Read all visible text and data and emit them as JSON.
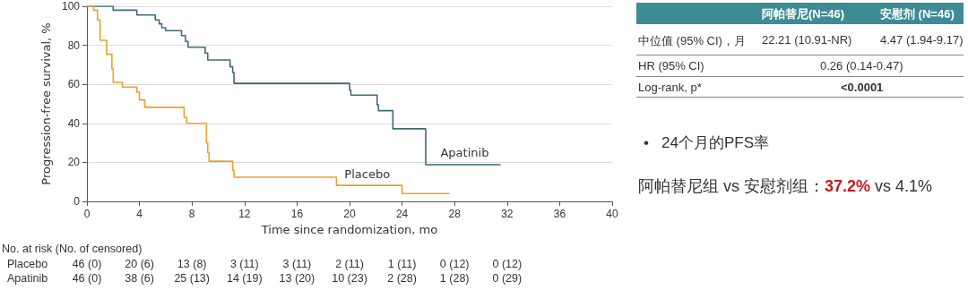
{
  "chart_data": {
    "type": "step",
    "xlabel": "Time since randomization, mo",
    "ylabel": "Progression-free survival, %",
    "xlim": [
      0,
      40
    ],
    "xticks": [
      0,
      4,
      8,
      12,
      16,
      20,
      24,
      28,
      32,
      36,
      40
    ],
    "ylim": [
      0,
      100
    ],
    "yticks": [
      0,
      20,
      40,
      60,
      80,
      100
    ],
    "grid": "y",
    "legend": false,
    "series": [
      {
        "name": "Apatinib",
        "color": "#3f6b78",
        "x": [
          0,
          2.0,
          3.8,
          5.2,
          5.5,
          5.7,
          6.0,
          7.2,
          7.5,
          7.7,
          9.0,
          9.2,
          10.9,
          11.1,
          11.2,
          20.0,
          20.1,
          22.1,
          22.2,
          23.3,
          25.8,
          31.5
        ],
        "values": [
          100,
          98,
          95.5,
          93,
          91,
          89,
          87.5,
          85,
          82,
          79,
          76,
          72.5,
          69,
          66,
          60.5,
          57,
          54.5,
          49.5,
          46.5,
          37.2,
          18.8,
          18.8
        ]
      },
      {
        "name": "Placebo",
        "color": "#f0a02c",
        "x": [
          0,
          0.5,
          0.8,
          1.0,
          1.5,
          1.9,
          2.0,
          2.7,
          3.8,
          4.0,
          4.4,
          7.4,
          7.6,
          9.1,
          9.2,
          9.3,
          11.1,
          11.2,
          19.0,
          24.0,
          27.6
        ],
        "values": [
          100,
          98,
          93,
          82.6,
          75.4,
          68,
          61,
          58.6,
          56,
          52,
          48.2,
          43,
          39.9,
          30,
          25,
          20.6,
          16,
          12.4,
          8.2,
          4,
          4
        ]
      }
    ],
    "annotations": [
      "阿帕替尼(N=46)",
      "安慰剂 (N=46)",
      "中位值 (95% CI)，月",
      "22.21 (10.91-NR)",
      "4.47 (1.94-9.17)",
      "HR (95% CI)",
      "0.26 (0.14-0.47)",
      "Log-rank, p*",
      "<0.0001",
      "•   24个月的PFS率",
      "阿帕替尼组 vs 安慰剂组：",
      "37.2%",
      " vs 4.1%",
      "No. at risk (No. of censored)",
      "Placebo",
      "46 (0)",
      "20 (6)",
      "13 (8)",
      "3 (11)",
      "3 (11)",
      "2 (11)",
      "1 (11)",
      "0 (12)",
      "0 (12)",
      "Apatinib",
      "46 (0)",
      "38 (6)",
      "25 (13)",
      "14 (19)",
      "13 (20)",
      "10 (23)",
      "2 (28)",
      "1 (28)",
      "0 (29)"
    ]
  }
}
